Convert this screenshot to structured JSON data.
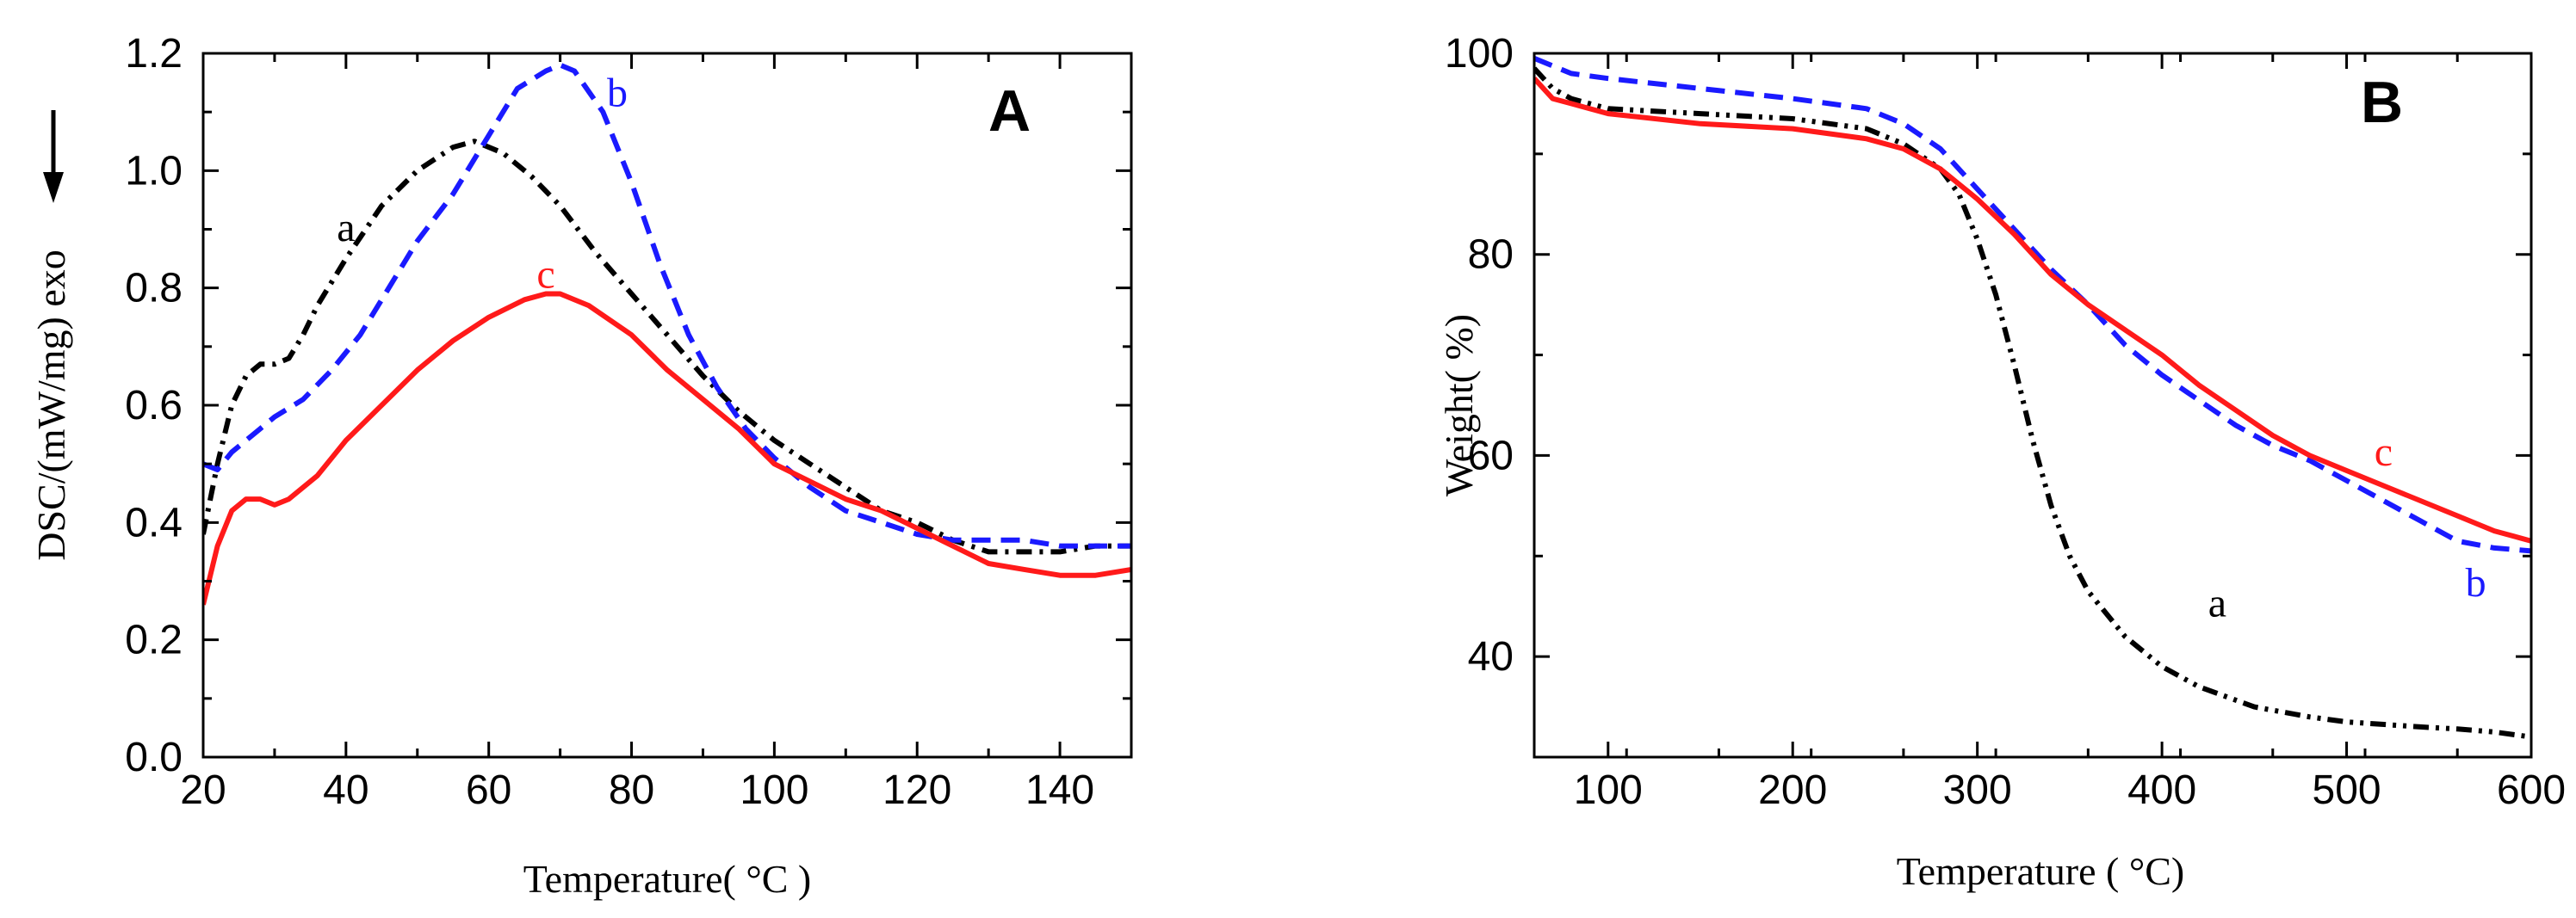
{
  "colors": {
    "a": "#000000",
    "b": "#1a1aff",
    "c": "#ff1a1a",
    "axis": "#000000"
  },
  "icons": {
    "exo_arrow": "down-arrow-icon"
  },
  "chart_data": [
    {
      "panel": "A",
      "type": "line",
      "title": "",
      "xlabel": "Temperature( °C )",
      "ylabel": "DSC/(mW/mg) exo",
      "xlim": [
        20,
        150
      ],
      "ylim": [
        0.0,
        1.2
      ],
      "xticks": [
        20,
        40,
        60,
        80,
        100,
        120,
        140
      ],
      "xtick_labels": [
        "20",
        "40",
        "60",
        "80",
        "100",
        "120",
        "140"
      ],
      "yticks": [
        0.0,
        0.2,
        0.4,
        0.6,
        0.8,
        1.0,
        1.2
      ],
      "ytick_labels": [
        "0.0",
        "0.2",
        "0.4",
        "0.6",
        "0.8",
        "1.0",
        "1.2"
      ],
      "series": [
        {
          "name": "a",
          "style": "dash-dot",
          "color": "#000000",
          "x": [
            20,
            22,
            24,
            26,
            28,
            30,
            32,
            34,
            36,
            40,
            45,
            50,
            55,
            58,
            62,
            66,
            70,
            75,
            80,
            85,
            90,
            95,
            100,
            105,
            110,
            115,
            120,
            125,
            130,
            135,
            140,
            145,
            150
          ],
          "y": [
            0.38,
            0.5,
            0.6,
            0.65,
            0.67,
            0.67,
            0.68,
            0.72,
            0.77,
            0.85,
            0.94,
            1.0,
            1.04,
            1.05,
            1.03,
            0.99,
            0.94,
            0.86,
            0.79,
            0.72,
            0.65,
            0.59,
            0.54,
            0.5,
            0.46,
            0.42,
            0.4,
            0.37,
            0.35,
            0.35,
            0.35,
            0.36,
            0.36
          ]
        },
        {
          "name": "b",
          "style": "dashed",
          "color": "#1a1aff",
          "x": [
            20,
            22,
            24,
            26,
            28,
            30,
            34,
            38,
            42,
            46,
            50,
            55,
            60,
            64,
            68,
            70,
            72,
            76,
            80,
            84,
            88,
            92,
            96,
            100,
            105,
            110,
            115,
            120,
            125,
            130,
            135,
            140,
            145,
            150
          ],
          "y": [
            0.5,
            0.49,
            0.52,
            0.54,
            0.56,
            0.58,
            0.61,
            0.66,
            0.72,
            0.8,
            0.88,
            0.96,
            1.06,
            1.14,
            1.17,
            1.18,
            1.17,
            1.1,
            0.98,
            0.84,
            0.72,
            0.63,
            0.56,
            0.51,
            0.46,
            0.42,
            0.4,
            0.38,
            0.37,
            0.37,
            0.37,
            0.36,
            0.36,
            0.36
          ]
        },
        {
          "name": "c",
          "style": "solid",
          "color": "#ff1a1a",
          "x": [
            20,
            22,
            24,
            26,
            28,
            30,
            32,
            36,
            40,
            45,
            50,
            55,
            60,
            65,
            68,
            70,
            74,
            80,
            85,
            90,
            95,
            100,
            105,
            110,
            115,
            120,
            125,
            130,
            135,
            140,
            145,
            150
          ],
          "y": [
            0.26,
            0.36,
            0.42,
            0.44,
            0.44,
            0.43,
            0.44,
            0.48,
            0.54,
            0.6,
            0.66,
            0.71,
            0.75,
            0.78,
            0.79,
            0.79,
            0.77,
            0.72,
            0.66,
            0.61,
            0.56,
            0.5,
            0.47,
            0.44,
            0.42,
            0.39,
            0.36,
            0.33,
            0.32,
            0.31,
            0.31,
            0.32
          ]
        }
      ],
      "annotations": [
        {
          "text": "a",
          "x": 40,
          "y": 0.88,
          "series": "a"
        },
        {
          "text": "b",
          "x": 78,
          "y": 1.11,
          "series": "b"
        },
        {
          "text": "c",
          "x": 68,
          "y": 0.8,
          "series": "c"
        }
      ],
      "panel_letter": "A"
    },
    {
      "panel": "B",
      "type": "line",
      "title": "",
      "xlabel": "Temperature ( °C)",
      "ylabel": "Weight(  %)",
      "xlim": [
        60,
        600
      ],
      "ylim": [
        30,
        100
      ],
      "xticks": [
        100,
        200,
        300,
        400,
        500,
        600
      ],
      "xtick_labels": [
        "100",
        "200",
        "300",
        "400",
        "500",
        "600"
      ],
      "yticks": [
        40,
        60,
        80,
        100
      ],
      "ytick_labels": [
        "40",
        "60",
        "80",
        "100"
      ],
      "series": [
        {
          "name": "a",
          "style": "dash-dot-dot",
          "color": "#000000",
          "x": [
            60,
            70,
            80,
            100,
            150,
            200,
            240,
            260,
            280,
            290,
            300,
            310,
            320,
            330,
            340,
            350,
            360,
            380,
            400,
            420,
            450,
            480,
            500,
            540,
            560,
            580,
            600
          ],
          "y": [
            98.5,
            96.5,
            95.5,
            94.5,
            94.0,
            93.5,
            92.5,
            91.0,
            88.5,
            86.0,
            81.5,
            76.0,
            69.0,
            61.5,
            55.0,
            50.0,
            46.5,
            42.0,
            39.0,
            37.0,
            35.0,
            34.0,
            33.5,
            33.0,
            32.8,
            32.5,
            32.0
          ]
        },
        {
          "name": "b",
          "style": "dashed",
          "color": "#1a1aff",
          "x": [
            60,
            80,
            100,
            150,
            200,
            240,
            260,
            280,
            300,
            320,
            340,
            360,
            380,
            400,
            420,
            440,
            460,
            480,
            500,
            520,
            540,
            560,
            580,
            600
          ],
          "y": [
            99.5,
            98.0,
            97.5,
            96.5,
            95.5,
            94.5,
            93.0,
            90.5,
            86.5,
            82.5,
            78.5,
            75.0,
            71.0,
            68.0,
            65.5,
            63.0,
            61.0,
            59.5,
            57.5,
            55.5,
            53.5,
            51.5,
            50.8,
            50.5
          ]
        },
        {
          "name": "c",
          "style": "solid",
          "color": "#ff1a1a",
          "x": [
            60,
            70,
            80,
            100,
            150,
            200,
            240,
            260,
            280,
            300,
            320,
            340,
            360,
            380,
            400,
            420,
            440,
            460,
            480,
            500,
            520,
            540,
            560,
            580,
            600
          ],
          "y": [
            97.5,
            95.5,
            95.0,
            94.0,
            93.0,
            92.5,
            91.5,
            90.5,
            88.5,
            85.5,
            82.0,
            78.0,
            75.0,
            72.5,
            70.0,
            67.0,
            64.5,
            62.0,
            60.0,
            58.5,
            57.0,
            55.5,
            54.0,
            52.5,
            51.5
          ]
        }
      ],
      "annotations": [
        {
          "text": "a",
          "x": 430,
          "y": 44,
          "series": "a"
        },
        {
          "text": "b",
          "x": 570,
          "y": 46,
          "series": "b"
        },
        {
          "text": "c",
          "x": 520,
          "y": 59,
          "series": "c"
        }
      ],
      "panel_letter": "B"
    }
  ]
}
